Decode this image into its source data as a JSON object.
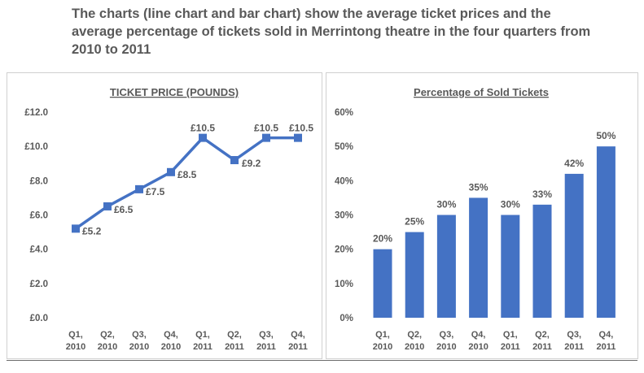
{
  "heading": "The charts (line chart and bar chart) show the average ticket prices and the average percentage of tickets sold in Merrintong theatre in the four quarters from 2010 to 2011",
  "colors": {
    "series": "#4472c4",
    "text": "#595959",
    "grid": "#d9d9d9",
    "border": "#d0d0d0"
  },
  "chart_data": [
    {
      "type": "line",
      "title": "TICKET PRICE (POUNDS)",
      "categories": [
        [
          "Q1,",
          "2010"
        ],
        [
          "Q2,",
          "2010"
        ],
        [
          "Q3,",
          "2010"
        ],
        [
          "Q4,",
          "2010"
        ],
        [
          "Q1,",
          "2011"
        ],
        [
          "Q2,",
          "2011"
        ],
        [
          "Q3,",
          "2011"
        ],
        [
          "Q4,",
          "2011"
        ]
      ],
      "values": [
        5.2,
        6.5,
        7.5,
        8.5,
        10.5,
        9.2,
        10.5,
        10.5
      ],
      "data_labels": [
        "£5.2",
        "£6.5",
        "£7.5",
        "£8.5",
        "£10.5",
        "£9.2",
        "£10.5",
        "£10.5"
      ],
      "ylim": [
        0,
        12
      ],
      "yticks": [
        0,
        2,
        4,
        6,
        8,
        10,
        12
      ],
      "ytick_labels": [
        "£0.0",
        "£2.0",
        "£4.0",
        "£6.0",
        "£8.0",
        "£10.0",
        "£12.0"
      ],
      "grid": false,
      "legend": "none"
    },
    {
      "type": "bar",
      "title": "Percentage of Sold Tickets",
      "categories": [
        [
          "Q1,",
          "2010"
        ],
        [
          "Q2,",
          "2010"
        ],
        [
          "Q3,",
          "2010"
        ],
        [
          "Q4,",
          "2010"
        ],
        [
          "Q1,",
          "2011"
        ],
        [
          "Q2,",
          "2011"
        ],
        [
          "Q3,",
          "2011"
        ],
        [
          "Q4,",
          "2011"
        ]
      ],
      "values": [
        20,
        25,
        30,
        35,
        30,
        33,
        42,
        50
      ],
      "data_labels": [
        "20%",
        "25%",
        "30%",
        "35%",
        "30%",
        "33%",
        "42%",
        "50%"
      ],
      "ylim": [
        0,
        60
      ],
      "yticks": [
        0,
        10,
        20,
        30,
        40,
        50,
        60
      ],
      "ytick_labels": [
        "0%",
        "10%",
        "20%",
        "30%",
        "40%",
        "50%",
        "60%"
      ],
      "grid": false,
      "legend": "none"
    }
  ]
}
